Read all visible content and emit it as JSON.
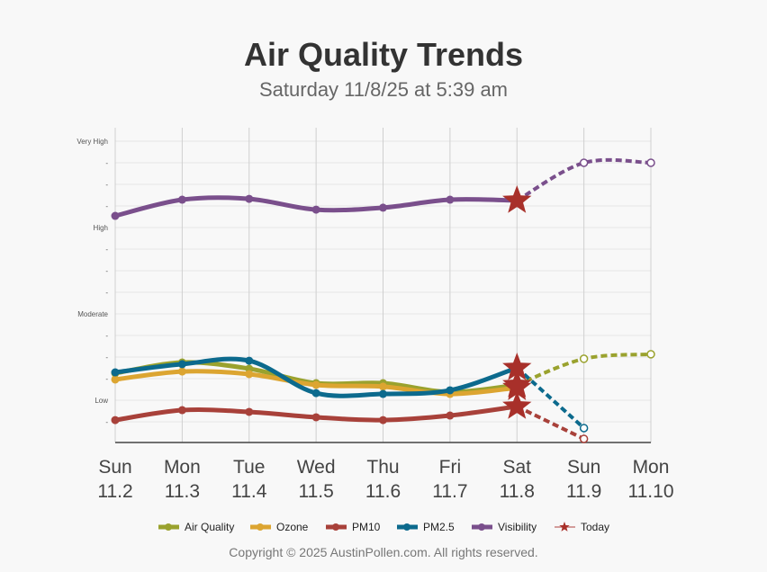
{
  "header": {
    "title": "Air Quality Trends",
    "subtitle": "Saturday 11/8/25 at 5:39 am"
  },
  "footer": {
    "copyright": "Copyright © 2025 AustinPollen.com.  All rights reserved."
  },
  "chart_data": {
    "type": "line",
    "title": "Air Quality Trends",
    "subtitle": "Saturday 11/8/25 at 5:39 am",
    "categories": [
      [
        "Sun",
        "11.2"
      ],
      [
        "Mon",
        "11.3"
      ],
      [
        "Tue",
        "11.4"
      ],
      [
        "Wed",
        "11.5"
      ],
      [
        "Thu",
        "11.6"
      ],
      [
        "Fri",
        "11.7"
      ],
      [
        "Sat",
        "11.8"
      ],
      [
        "Sun",
        "11.9"
      ],
      [
        "Mon",
        "11.10"
      ]
    ],
    "today_index": 6,
    "ylim": [
      1,
      15.5
    ],
    "y_ticks": [
      {
        "v": 15,
        "label": "Very High"
      },
      {
        "v": 14,
        "label": "-"
      },
      {
        "v": 13,
        "label": "-"
      },
      {
        "v": 12,
        "label": "-"
      },
      {
        "v": 11,
        "label": "High"
      },
      {
        "v": 10,
        "label": "-"
      },
      {
        "v": 9,
        "label": "-"
      },
      {
        "v": 8,
        "label": "-"
      },
      {
        "v": 7,
        "label": "Moderate"
      },
      {
        "v": 6,
        "label": "-"
      },
      {
        "v": 5,
        "label": "-"
      },
      {
        "v": 4,
        "label": "-"
      },
      {
        "v": 3,
        "label": "Low"
      },
      {
        "v": 2,
        "label": "-"
      }
    ],
    "grid": true,
    "legend_position": "bottom",
    "series": [
      {
        "name": "Air Quality",
        "color": "#9aa22e",
        "values": [
          4.25,
          4.75,
          4.46,
          3.79,
          3.79,
          3.38,
          3.71,
          4.92,
          5.13
        ]
      },
      {
        "name": "Ozone",
        "color": "#dca531",
        "values": [
          3.96,
          4.33,
          4.21,
          3.71,
          3.63,
          3.29,
          3.58,
          null,
          null
        ]
      },
      {
        "name": "PM10",
        "color": "#a8413a",
        "values": [
          2.08,
          2.54,
          2.46,
          2.21,
          2.08,
          2.29,
          2.71,
          1.21,
          null
        ]
      },
      {
        "name": "PM2.5",
        "color": "#0c6a8d",
        "values": [
          4.29,
          4.67,
          4.83,
          3.33,
          3.29,
          3.46,
          4.5,
          1.71,
          null
        ]
      },
      {
        "name": "Visibility",
        "color": "#7a4f8c",
        "values": [
          11.54,
          12.29,
          12.33,
          11.83,
          11.92,
          12.29,
          12.25,
          14,
          14
        ]
      }
    ],
    "today_marker": {
      "name": "Today",
      "color": "#a8302a"
    }
  }
}
